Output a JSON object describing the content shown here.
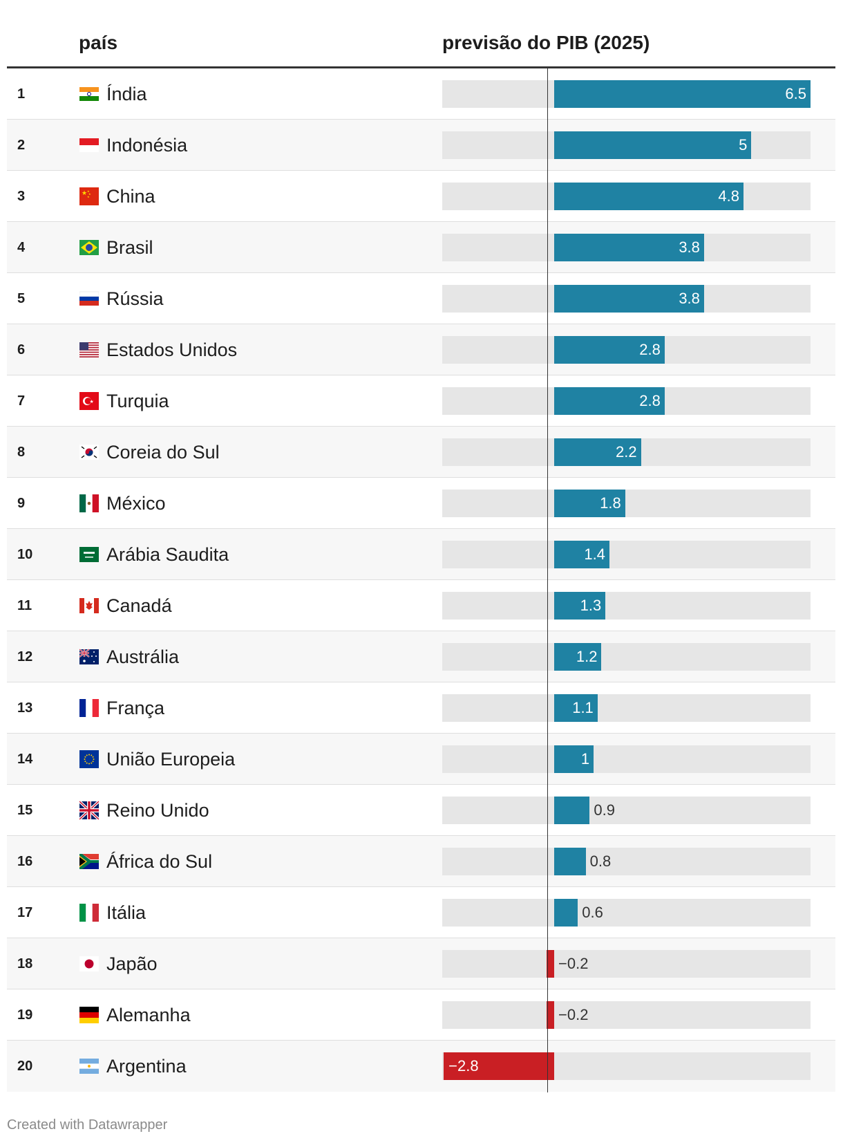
{
  "header": {
    "country_col": "país",
    "value_col": "previsão do PIB (2025)"
  },
  "footer": {
    "credit": "Created with Datawrapper"
  },
  "colors": {
    "positive": "#1f82a3",
    "negative": "#c91f24",
    "track": "#e6e6e6"
  },
  "chart_data": {
    "type": "bar",
    "orientation": "horizontal",
    "xlim": [
      -2.8,
      6.5
    ],
    "categories": [
      "Índia",
      "Indonésia",
      "China",
      "Brasil",
      "Rússia",
      "Estados Unidos",
      "Turquia",
      "Coreia do Sul",
      "México",
      "Arábia Saudita",
      "Canadá",
      "Austrália",
      "França",
      "União Europeia",
      "Reino Unido",
      "África do Sul",
      "Itália",
      "Japão",
      "Alemanha",
      "Argentina"
    ],
    "values": [
      6.5,
      5,
      4.8,
      3.8,
      3.8,
      2.8,
      2.8,
      2.2,
      1.8,
      1.4,
      1.3,
      1.2,
      1.1,
      1,
      0.9,
      0.8,
      0.6,
      -0.2,
      -0.2,
      -2.8
    ],
    "value_labels": [
      "6.5",
      "5",
      "4.8",
      "3.8",
      "3.8",
      "2.8",
      "2.8",
      "2.2",
      "1.8",
      "1.4",
      "1.3",
      "1.2",
      "1.1",
      "1",
      "0.9",
      "0.8",
      "0.6",
      "−0.2",
      "−0.2",
      "−2.8"
    ],
    "ranks": [
      "1",
      "2",
      "3",
      "4",
      "5",
      "6",
      "7",
      "8",
      "9",
      "10",
      "11",
      "12",
      "13",
      "14",
      "15",
      "16",
      "17",
      "18",
      "19",
      "20"
    ],
    "flags": [
      "india-flag-icon",
      "indonesia-flag-icon",
      "china-flag-icon",
      "brazil-flag-icon",
      "russia-flag-icon",
      "usa-flag-icon",
      "turkey-flag-icon",
      "south-korea-flag-icon",
      "mexico-flag-icon",
      "saudi-arabia-flag-icon",
      "canada-flag-icon",
      "australia-flag-icon",
      "france-flag-icon",
      "eu-flag-icon",
      "uk-flag-icon",
      "south-africa-flag-icon",
      "italy-flag-icon",
      "japan-flag-icon",
      "germany-flag-icon",
      "argentina-flag-icon"
    ]
  }
}
